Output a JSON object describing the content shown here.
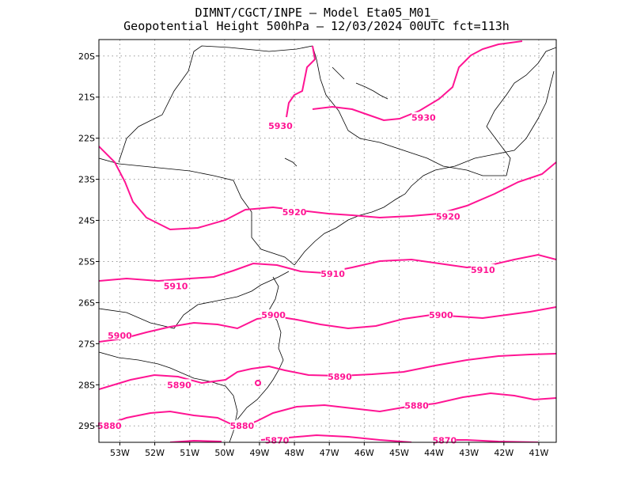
{
  "title": {
    "line1": "DIMNT/CGCT/INPE  –   Model Eta05_M01_",
    "line2": "Geopotential Height 500hPa –   12/03/2024 00UTC fct=113h"
  },
  "colors": {
    "contour": "#ff1493",
    "border": "#000000",
    "grid": "#9a9a9a"
  },
  "axes": {
    "lon_range": [
      -53.6,
      -40.5
    ],
    "lat_range": [
      -29.4,
      -19.6
    ],
    "lon_ticks": [
      "53W",
      "52W",
      "51W",
      "50W",
      "49W",
      "48W",
      "47W",
      "46W",
      "45W",
      "44W",
      "43W",
      "42W",
      "41W"
    ],
    "lat_ticks": [
      "20S",
      "21S",
      "22S",
      "23S",
      "24S",
      "25S",
      "26S",
      "27S",
      "28S",
      "29S"
    ]
  },
  "contour_labels": [
    {
      "text": "5930",
      "lon": -48.4,
      "lat": -21.7
    },
    {
      "text": "5930",
      "lon": -44.3,
      "lat": -21.5
    },
    {
      "text": "5920",
      "lon": -48.0,
      "lat": -23.8
    },
    {
      "text": "5920",
      "lon": -43.6,
      "lat": -23.9
    },
    {
      "text": "5910",
      "lon": -51.4,
      "lat": -25.6
    },
    {
      "text": "5910",
      "lon": -46.9,
      "lat": -25.3
    },
    {
      "text": "5910",
      "lon": -42.6,
      "lat": -25.2
    },
    {
      "text": "5900",
      "lon": -53.0,
      "lat": -26.8
    },
    {
      "text": "5900",
      "lon": -48.6,
      "lat": -26.3
    },
    {
      "text": "5900",
      "lon": -43.8,
      "lat": -26.3
    },
    {
      "text": "5890",
      "lon": -51.3,
      "lat": -28.0
    },
    {
      "text": "5890",
      "lon": -46.7,
      "lat": -27.8
    },
    {
      "text": "5880",
      "lon": -53.3,
      "lat": -29.0
    },
    {
      "text": "5880",
      "lon": -49.5,
      "lat": -29.0
    },
    {
      "text": "5880",
      "lon": -44.5,
      "lat": -28.5
    },
    {
      "text": "5870",
      "lon": -48.5,
      "lat": -29.35
    },
    {
      "text": "5870",
      "lon": -43.7,
      "lat": -29.35
    }
  ]
}
